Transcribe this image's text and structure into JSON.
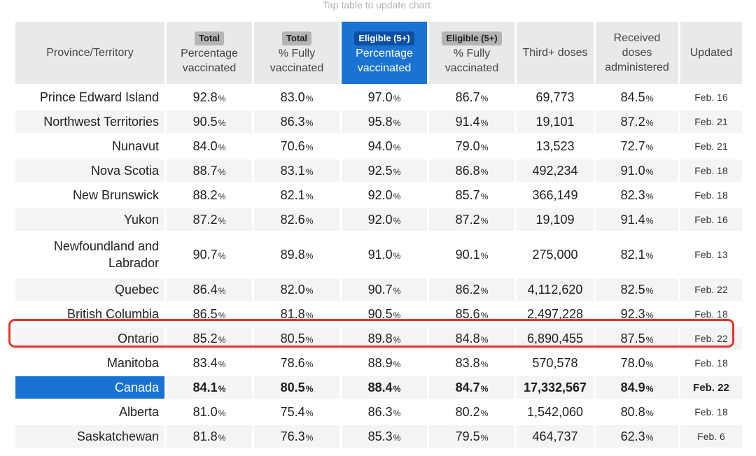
{
  "hint": "Tap table to update chart.",
  "pct_symbol": "%",
  "headers": [
    {
      "pill": "",
      "label": "Province/Territory"
    },
    {
      "pill": "Total",
      "label": "Percentage vaccinated"
    },
    {
      "pill": "Total",
      "label": "% Fully vaccinated"
    },
    {
      "pill": "Eligible (5+)",
      "label": "Percentage vaccinated",
      "selected": true
    },
    {
      "pill": "Eligible (5+)",
      "label": "% Fully vaccinated"
    },
    {
      "pill": "",
      "label": "Third+ doses"
    },
    {
      "pill": "",
      "label": "Received doses administered"
    },
    {
      "pill": "",
      "label": "Updated"
    }
  ],
  "highlighted_row": "Ontario",
  "colors": {
    "accent": "#1a73d3",
    "highlight": "#e8352c",
    "header_bg": "#e9e9e9",
    "stripe": "#f4f4f4"
  },
  "rows": [
    {
      "province": "Prince Edward Island",
      "total_pct": "92.8",
      "total_full": "83.0",
      "elig_pct": "97.0",
      "elig_full": "86.7",
      "third": "69,773",
      "received": "84.5",
      "updated": "Feb. 16"
    },
    {
      "province": "Northwest Territories",
      "total_pct": "90.5",
      "total_full": "86.3",
      "elig_pct": "95.8",
      "elig_full": "91.4",
      "third": "19,101",
      "received": "87.2",
      "updated": "Feb. 21"
    },
    {
      "province": "Nunavut",
      "total_pct": "84.0",
      "total_full": "70.6",
      "elig_pct": "94.0",
      "elig_full": "79.0",
      "third": "13,523",
      "received": "72.7",
      "updated": "Feb. 21"
    },
    {
      "province": "Nova Scotia",
      "total_pct": "88.7",
      "total_full": "83.1",
      "elig_pct": "92.5",
      "elig_full": "86.8",
      "third": "492,234",
      "received": "91.0",
      "updated": "Feb. 18"
    },
    {
      "province": "New Brunswick",
      "total_pct": "88.2",
      "total_full": "82.1",
      "elig_pct": "92.0",
      "elig_full": "85.7",
      "third": "366,149",
      "received": "82.3",
      "updated": "Feb. 18"
    },
    {
      "province": "Yukon",
      "total_pct": "87.2",
      "total_full": "82.6",
      "elig_pct": "92.0",
      "elig_full": "87.2",
      "third": "19,109",
      "received": "91.4",
      "updated": "Feb. 16"
    },
    {
      "province": "Newfoundland and Labrador",
      "total_pct": "90.7",
      "total_full": "89.8",
      "elig_pct": "91.0",
      "elig_full": "90.1",
      "third": "275,000",
      "received": "82.1",
      "updated": "Feb. 13"
    },
    {
      "province": "Quebec",
      "total_pct": "86.4",
      "total_full": "82.0",
      "elig_pct": "90.7",
      "elig_full": "86.2",
      "third": "4,112,620",
      "received": "82.5",
      "updated": "Feb. 22"
    },
    {
      "province": "British Columbia",
      "total_pct": "86.5",
      "total_full": "81.8",
      "elig_pct": "90.5",
      "elig_full": "85.6",
      "third": "2,497,228",
      "received": "92.3",
      "updated": "Feb. 18"
    },
    {
      "province": "Ontario",
      "total_pct": "85.2",
      "total_full": "80.5",
      "elig_pct": "89.8",
      "elig_full": "84.8",
      "third": "6,890,455",
      "received": "87.5",
      "updated": "Feb. 22"
    },
    {
      "province": "Manitoba",
      "total_pct": "83.4",
      "total_full": "78.6",
      "elig_pct": "88.9",
      "elig_full": "83.8",
      "third": "570,578",
      "received": "78.0",
      "updated": "Feb. 18"
    },
    {
      "province": "Canada",
      "total_pct": "84.1",
      "total_full": "80.5",
      "elig_pct": "88.4",
      "elig_full": "84.7",
      "third": "17,332,567",
      "received": "84.9",
      "updated": "Feb. 22",
      "national": true
    },
    {
      "province": "Alberta",
      "total_pct": "81.0",
      "total_full": "75.4",
      "elig_pct": "86.3",
      "elig_full": "80.2",
      "third": "1,542,060",
      "received": "80.8",
      "updated": "Feb. 18"
    },
    {
      "province": "Saskatchewan",
      "total_pct": "81.8",
      "total_full": "76.3",
      "elig_pct": "85.3",
      "elig_full": "79.5",
      "third": "464,737",
      "received": "62.3",
      "updated": "Feb. 6"
    }
  ]
}
